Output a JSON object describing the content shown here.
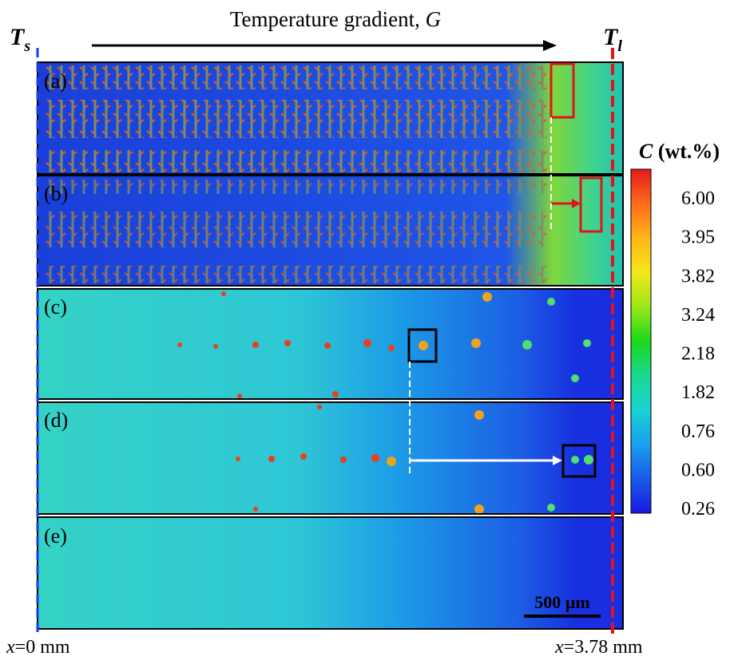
{
  "header": {
    "gradient_text": "Temperature gradient,",
    "gradient_symbol": "G"
  },
  "markers": {
    "solidus": {
      "symbol": "T",
      "subscript": "s"
    },
    "liquidus": {
      "symbol": "T",
      "subscript": "l"
    }
  },
  "panels": [
    "(a)",
    "(b)",
    "(c)",
    "(d)",
    "(e)"
  ],
  "colorbar": {
    "symbol": "C",
    "unit": "(wt.%)",
    "labels": [
      "6.00",
      "3.95",
      "3.82",
      "3.24",
      "2.18",
      "1.82",
      "0.76",
      "0.60",
      "0.26"
    ]
  },
  "scale_bar": "500 µm",
  "x_labels": {
    "left": {
      "var": "x",
      "text": "=0 mm"
    },
    "right": {
      "var": "x",
      "text": "=3.78 mm"
    }
  }
}
